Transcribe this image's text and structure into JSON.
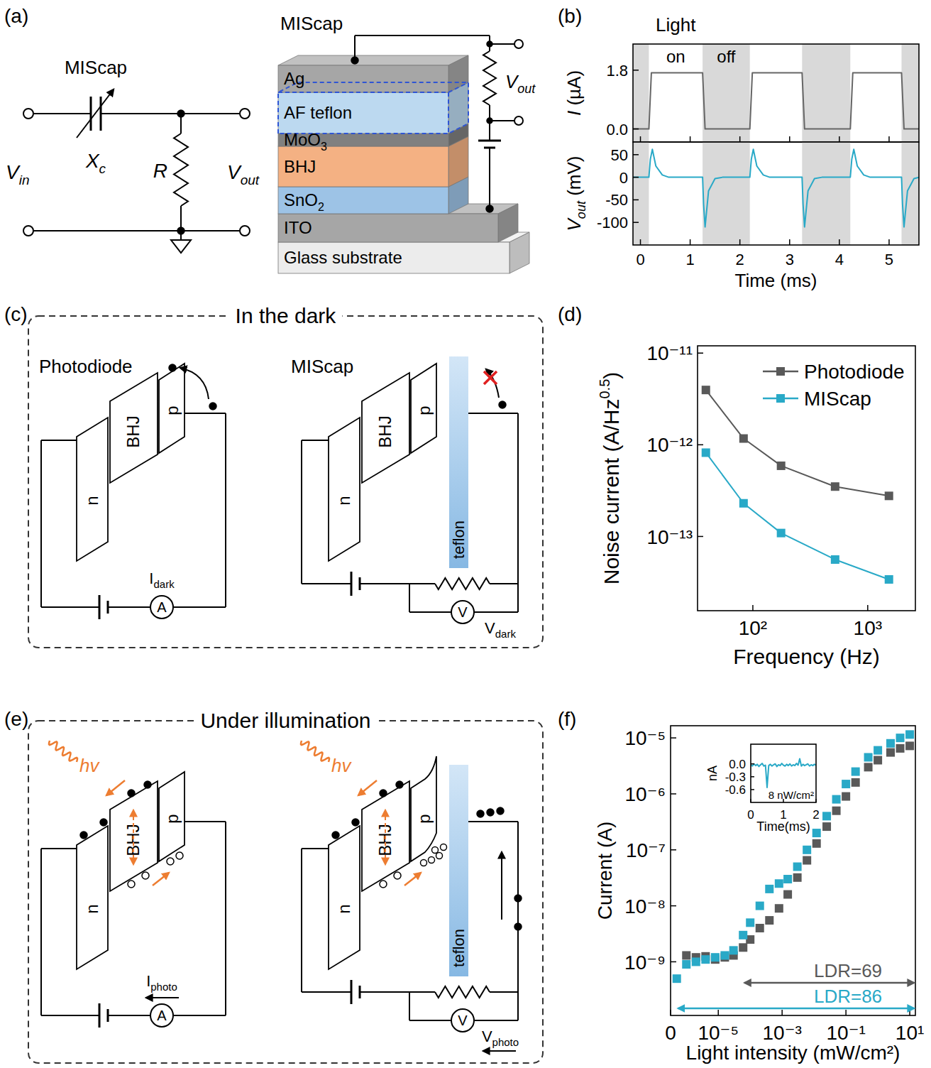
{
  "panel_labels": {
    "b": "(b)",
    "d": "(d)",
    "f": "(f)"
  },
  "diagrams": {
    "a": {
      "label": "(a)",
      "circuit": {
        "component": "MIScap",
        "reactance": [
          {
            "text": "X",
            "style": "italic"
          },
          {
            "text": "c",
            "style": "italic sub"
          }
        ],
        "resistor": [
          {
            "text": "R",
            "style": "italic"
          }
        ],
        "input": [
          {
            "text": "V",
            "style": "italic"
          },
          {
            "text": "in",
            "style": "italic sub"
          }
        ],
        "output": [
          {
            "text": "V",
            "style": "italic"
          },
          {
            "text": "out",
            "style": "italic sub"
          }
        ]
      },
      "stack": {
        "title": "MIScap",
        "layers": [
          "Ag",
          "AF teflon",
          [
            {
              "text": "MoO"
            },
            {
              "text": "3",
              "style": "sub"
            }
          ],
          "BHJ",
          [
            {
              "text": "SnO"
            },
            {
              "text": "2",
              "style": "sub"
            }
          ],
          "ITO",
          "Glass substrate"
        ],
        "output": [
          {
            "text": "V",
            "style": "italic"
          },
          {
            "text": "out",
            "style": "italic sub"
          }
        ]
      }
    },
    "c": {
      "label": "(c)",
      "title": "In the dark",
      "photodiode": {
        "name": "Photodiode",
        "n": "n",
        "bhj": "BHJ",
        "p": "p",
        "meter": "A",
        "signal": [
          {
            "text": "I"
          },
          {
            "text": "dark",
            "style": "sub"
          }
        ]
      },
      "miscap": {
        "name": "MIScap",
        "n": "n",
        "bhj": "BHJ",
        "p": "p",
        "insulator": "teflon",
        "meter": "V",
        "signal": [
          {
            "text": "V"
          },
          {
            "text": "dark",
            "style": "sub"
          }
        ]
      }
    },
    "e": {
      "label": "(e)",
      "title": "Under illumination",
      "photodiode": {
        "photon": [
          {
            "text": "hv",
            "style": "italic"
          }
        ],
        "n": "n",
        "bhj": "BHJ",
        "p": "p",
        "meter": "A",
        "signal": [
          {
            "text": "I"
          },
          {
            "text": "photo",
            "style": "sub"
          }
        ]
      },
      "miscap": {
        "photon": [
          {
            "text": "hv",
            "style": "italic"
          }
        ],
        "n": "n",
        "bhj": "BHJ",
        "p": "p",
        "insulator": "teflon",
        "meter": "V",
        "signal": [
          {
            "text": "V"
          },
          {
            "text": "photo",
            "style": "sub"
          }
        ]
      }
    }
  },
  "chart_data": [
    {
      "type": "line",
      "annotations": [
        {
          "text": "Light"
        },
        {
          "text": "on"
        },
        {
          "text": "off"
        }
      ],
      "ylabel": [
        {
          "text": "I",
          "style": "italic"
        },
        {
          "text": " (µA)"
        }
      ],
      "x": [
        -0.15,
        0.17,
        0.22,
        1.25,
        1.3,
        2.2,
        2.25,
        3.25,
        3.3,
        4.22,
        4.27,
        5.25,
        5.3,
        5.6
      ],
      "values": [
        0,
        0,
        1.72,
        1.72,
        0,
        0,
        1.72,
        1.72,
        0,
        0,
        1.72,
        1.72,
        0,
        0
      ],
      "color": "#666666",
      "xlim": [
        -0.15,
        5.6
      ],
      "ylim": [
        -0.4,
        2.6
      ],
      "xticks": [
        0,
        1,
        2,
        3,
        4,
        5
      ],
      "yticks": [
        {
          "value": 0,
          "label": "0.0"
        },
        1.8
      ],
      "tick_labels": "y",
      "shaded_ranges": [
        [
          -0.15,
          0.17
        ],
        [
          1.25,
          2.2
        ],
        [
          3.25,
          4.22
        ],
        [
          5.25,
          5.6
        ]
      ]
    },
    {
      "type": "line",
      "xlabel": "Time (ms)",
      "ylabel": [
        {
          "text": "V",
          "style": "italic"
        },
        {
          "text": "out",
          "style": "italic sub"
        },
        {
          "text": " (mV)"
        }
      ],
      "x": [
        -0.15,
        0.17,
        0.2,
        0.24,
        0.31,
        0.44,
        0.57,
        1.25,
        1.27,
        1.3,
        1.37,
        1.5,
        1.65,
        2.2,
        2.23,
        2.27,
        2.34,
        2.47,
        2.6,
        3.25,
        3.27,
        3.3,
        3.37,
        3.5,
        3.65,
        4.22,
        4.25,
        4.29,
        4.36,
        4.49,
        4.62,
        5.25,
        5.27,
        5.3,
        5.37,
        5.5,
        5.6
      ],
      "values": [
        0,
        0,
        40,
        62,
        25,
        5,
        0,
        0,
        -60,
        -110,
        -30,
        -3,
        0,
        0,
        40,
        62,
        25,
        5,
        0,
        0,
        -60,
        -110,
        -30,
        -3,
        0,
        0,
        40,
        62,
        25,
        5,
        0,
        0,
        -60,
        -110,
        -30,
        -3,
        0
      ],
      "color": "#29a9c7",
      "xlim": [
        -0.15,
        5.6
      ],
      "ylim": [
        -150,
        78
      ],
      "xticks": [
        0,
        1,
        2,
        3,
        4,
        5
      ],
      "yticks": [
        -100,
        -50,
        0,
        50
      ],
      "shaded_ranges": [
        [
          -0.15,
          0.17
        ],
        [
          1.25,
          2.2
        ],
        [
          3.25,
          4.22
        ],
        [
          5.25,
          5.6
        ]
      ]
    },
    {
      "type": "line",
      "marker": "square",
      "log": true,
      "xlabel": "Frequency (Hz)",
      "ylabel": [
        {
          "text": "Noise current (A/Hz"
        },
        {
          "text": "0.5",
          "style": "sup"
        },
        {
          "text": ")"
        }
      ],
      "x": [
        39,
        83,
        176,
        520,
        1530
      ],
      "series": [
        {
          "name": "Photodiode",
          "color": "#595959",
          "values": [
            3.96e-12,
            1.17e-12,
            5.9e-13,
            3.5e-13,
            2.77e-13
          ]
        },
        {
          "name": "MIScap",
          "color": "#29a9c7",
          "values": [
            8.2e-13,
            2.3e-13,
            1.09e-13,
            5.6e-14,
            3.4e-14
          ]
        }
      ],
      "xlim": [
        33,
        2600
      ],
      "ylim": [
        1.55e-14,
        1.2e-11
      ],
      "xticks": [
        {
          "value": 100,
          "label": "10²"
        },
        {
          "value": 1000,
          "label": "10³"
        }
      ],
      "yticks": [
        {
          "value": 1e-11,
          "label": "10⁻¹¹"
        },
        {
          "value": 1e-12,
          "label": "10⁻¹²"
        },
        {
          "value": 1e-13,
          "label": "10⁻¹³"
        }
      ],
      "legend": "upper right"
    },
    {
      "type": "scatter",
      "marker": "square",
      "log": true,
      "xlabel": "Light intensity (mW/cm²)",
      "ylabel": "Current (A)",
      "x": [
        5e-07,
        1e-06,
        2e-06,
        4e-06,
        8e-06,
        1.6e-05,
        3e-05,
        6e-05,
        0.0001,
        0.0002,
        0.0004,
        0.0008,
        0.0015,
        0.003,
        0.006,
        0.012,
        0.025,
        0.05,
        0.1,
        0.2,
        0.5,
        1,
        2.5,
        5,
        10
      ],
      "series": [
        {
          "color": "#595959",
          "values": [
            null,
            1.3e-09,
            1.2e-09,
            1.25e-09,
            1.1e-09,
            1.2e-09,
            1.3e-09,
            1.8e-09,
            2.5e-09,
            4e-09,
            5.5e-09,
            9e-09,
            1.6e-08,
            3.2e-08,
            6.5e-08,
            1.3e-07,
            2.6e-07,
            5e-07,
            9e-07,
            1.6e-06,
            3e-06,
            4e-06,
            5.5e-06,
            6.5e-06,
            7.2e-06
          ]
        },
        {
          "color": "#29a9c7",
          "values": [
            5e-10,
            9e-10,
            1e-09,
            1.1e-09,
            1.2e-09,
            1.3e-09,
            1.6e-09,
            3e-09,
            5e-09,
            1e-08,
            2e-08,
            2.5e-08,
            3e-08,
            5e-08,
            1e-07,
            2e-07,
            4e-07,
            8e-07,
            1.5e-06,
            2.5e-06,
            4.5e-06,
            6e-06,
            8e-06,
            1e-05,
            1.15e-05
          ]
        }
      ],
      "xlim": [
        3.2e-07,
        15
      ],
      "ylim": [
        1.1e-10,
        1.65e-05
      ],
      "xticks": [
        {
          "value": 3.2e-07,
          "label": "0"
        },
        {
          "value": 1e-05,
          "label": "10⁻⁵"
        },
        {
          "value": 0.001,
          "label": "10⁻³"
        },
        {
          "value": 0.1,
          "label": "10⁻¹"
        },
        {
          "value": 10,
          "label": "10¹"
        }
      ],
      "yticks": [
        {
          "value": 1e-05,
          "label": "10⁻⁵"
        },
        {
          "value": 1e-06,
          "label": "10⁻⁶"
        },
        {
          "value": 1e-07,
          "label": "10⁻⁷"
        },
        {
          "value": 1e-08,
          "label": "10⁻⁸"
        },
        {
          "value": 1e-09,
          "label": "10⁻⁹"
        }
      ],
      "annotations": [
        {
          "text": "LDR=69",
          "color": "#595959",
          "x_range": [
            6e-05,
            15
          ]
        },
        {
          "text": "LDR=86",
          "color": "#29a9c7",
          "x_range": [
            5e-07,
            15
          ]
        }
      ]
    },
    {
      "type": "line",
      "xlabel": "Time(ms)",
      "ylabel": "nA",
      "x": [
        0,
        0.05,
        0.1,
        0.15,
        0.2,
        0.25,
        0.3,
        0.35,
        0.4,
        0.45,
        0.5,
        0.55,
        0.6,
        0.65,
        0.7,
        0.75,
        0.8,
        0.85,
        0.9,
        0.95,
        1,
        1.05,
        1.1,
        1.15,
        1.2,
        1.25,
        1.3,
        1.35,
        1.4,
        1.45,
        1.5,
        1.55,
        1.6,
        1.65,
        1.7,
        1.75,
        1.8,
        1.85,
        1.9,
        1.95,
        2
      ],
      "values": [
        -0.02,
        -0.05,
        0,
        -0.04,
        -0.01,
        -0.06,
        -0.02,
        0.01,
        -0.05,
        -0.03,
        -0.55,
        -0.04,
        -0.01,
        -0.05,
        -0.02,
        0,
        -0.06,
        -0.02,
        -0.04,
        0.01,
        -0.03,
        -0.05,
        -0.01,
        -0.04,
        0,
        -0.05,
        -0.02,
        -0.04,
        0.01,
        -0.03,
        0.12,
        -0.05,
        -0.01,
        -0.04,
        -0.02,
        0,
        -0.05,
        -0.02,
        -0.04,
        -0.01,
        -0.03
      ],
      "color": "#29a9c7",
      "xlim": [
        0,
        2
      ],
      "ylim": [
        -0.9,
        0.46
      ],
      "xticks": [
        0,
        1,
        2
      ],
      "yticks": [
        {
          "value": 0,
          "label": "0.0"
        },
        -0.3,
        -0.6
      ],
      "annotations": [
        {
          "text": "8 nW/cm²"
        }
      ]
    }
  ]
}
